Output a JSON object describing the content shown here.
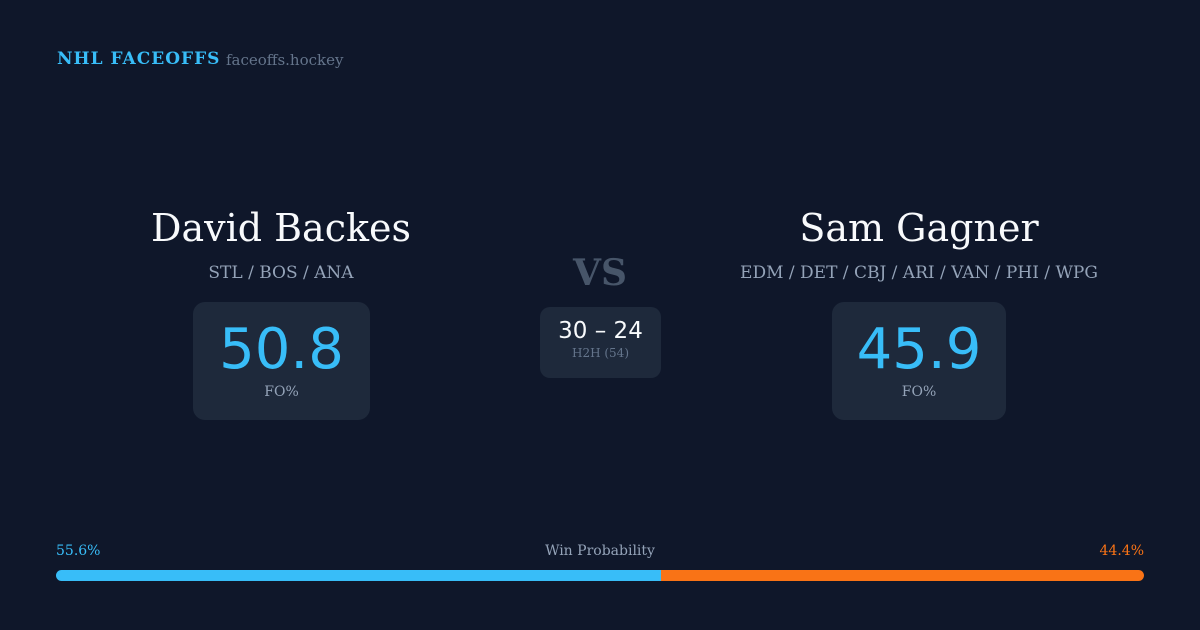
{
  "header": {
    "brand": "NHL FACEOFFS",
    "domain": "faceoffs.hockey"
  },
  "player1": {
    "name": "David Backes",
    "teams": "STL / BOS / ANA",
    "fo_pct": "50.8",
    "fo_label": "FO%"
  },
  "player2": {
    "name": "Sam Gagner",
    "teams": "EDM / DET / CBJ / ARI / VAN / PHI / WPG",
    "fo_pct": "45.9",
    "fo_label": "FO%"
  },
  "vs": "VS",
  "h2h": {
    "score": "30 – 24",
    "label": "H2H (54)"
  },
  "win_probability": {
    "label": "Win Probability",
    "player1_pct": "55.6%",
    "player2_pct": "44.4%",
    "player1_value": 55.6,
    "player2_value": 44.4,
    "player1_color": "#38bdf8",
    "player2_color": "#f97316"
  }
}
